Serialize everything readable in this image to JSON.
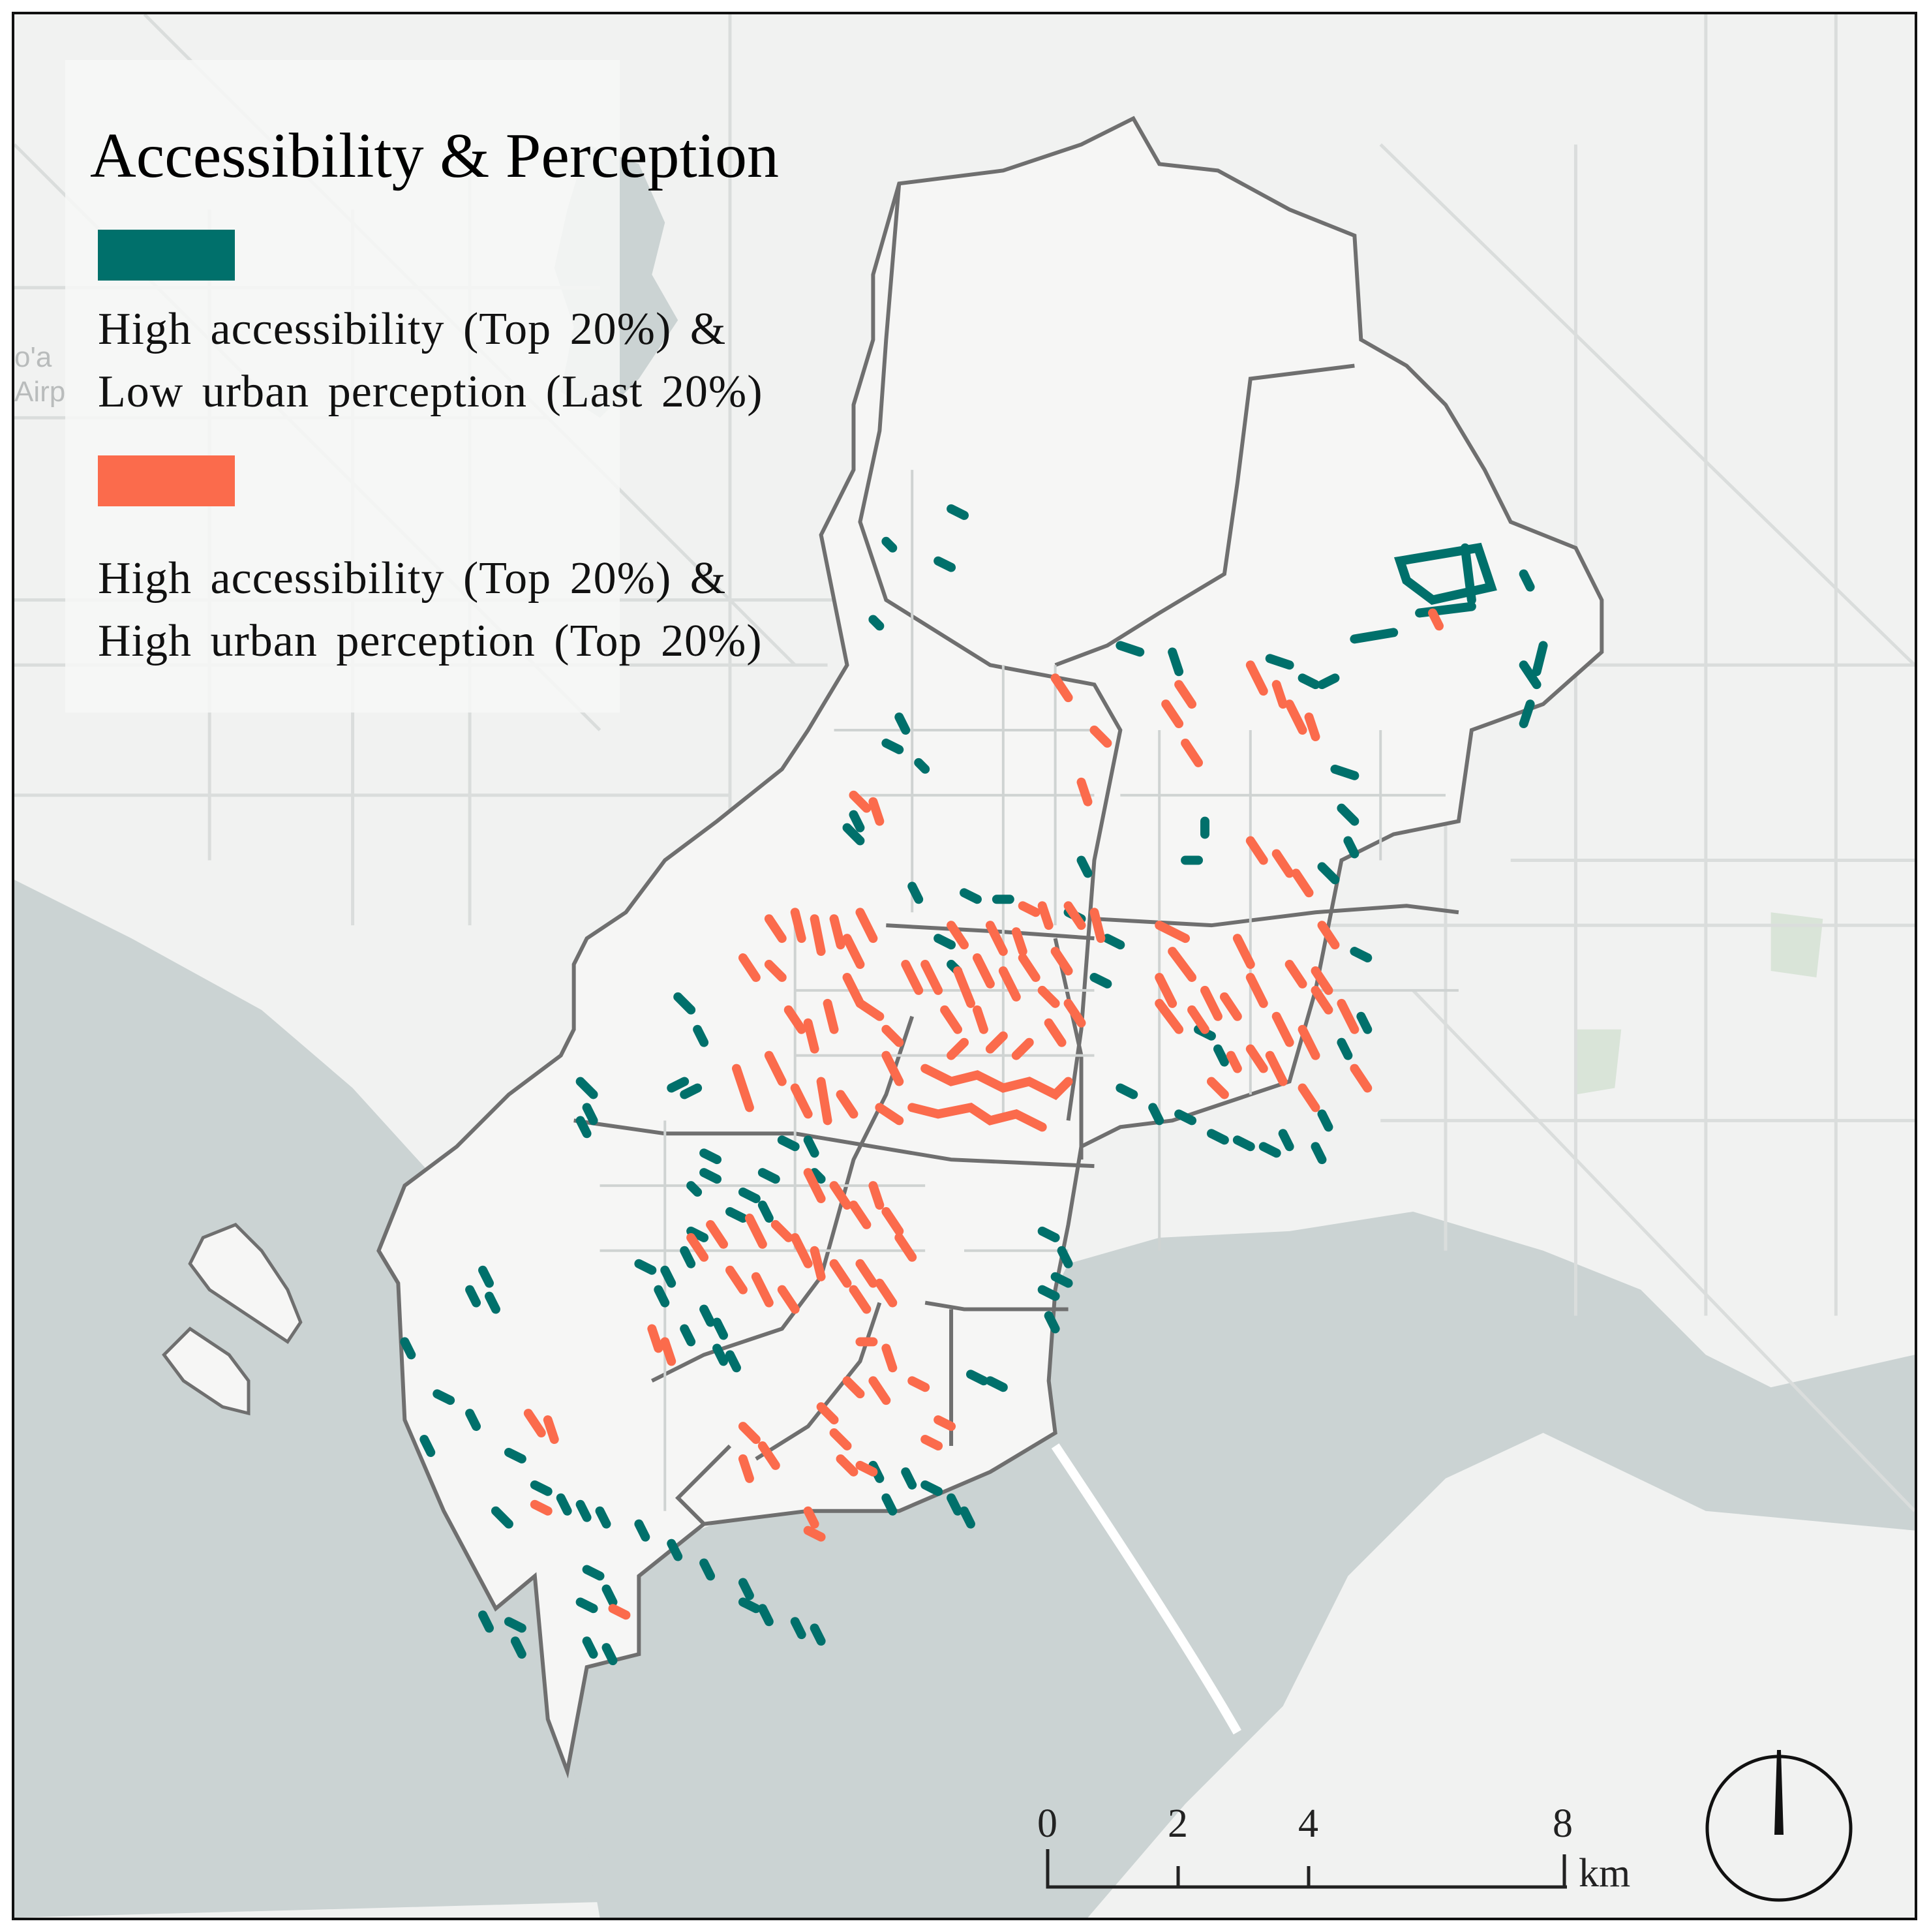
{
  "legend": {
    "title": "Accessibility & Perception",
    "items": [
      {
        "color": "#00706b",
        "line1": "High accessibility (Top 20%) &",
        "line2": "Low urban perception (Last 20%)"
      },
      {
        "color": "#fb6b4c",
        "line1": "High accessibility (Top 20%) &",
        "line2": "High urban perception (Top 20%)"
      }
    ]
  },
  "scale_bar": {
    "ticks": [
      "0",
      "2",
      "4",
      "8"
    ],
    "unit": "km"
  },
  "basemap_label": {
    "line1": "o'a",
    "line2": "Airp"
  },
  "colors": {
    "water": "#cbd3d3",
    "land": "#f1f2f1",
    "park": "#d9e4d8",
    "district_boundary": "#6f6f6f",
    "road": "#cfd3d2"
  }
}
